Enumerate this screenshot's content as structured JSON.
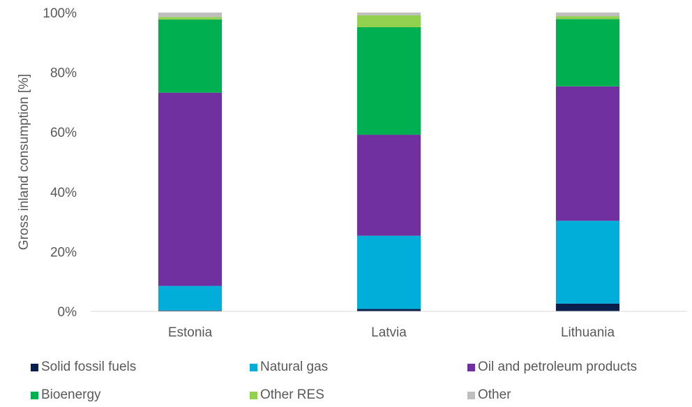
{
  "chart_data": {
    "type": "bar",
    "stacked": true,
    "categories": [
      "Estonia",
      "Latvia",
      "Lithuania"
    ],
    "ylabel": "Gross inland consumption [%]",
    "ylim": [
      0,
      100
    ],
    "yticks": [
      "0%",
      "20%",
      "40%",
      "60%",
      "80%",
      "100%"
    ],
    "grid": false,
    "legend_position": "bottom",
    "series": [
      {
        "name": "Solid fossil fuels",
        "color": "#0b1f4d",
        "values": [
          0.3,
          0.8,
          2.6
        ]
      },
      {
        "name": "Natural gas",
        "color": "#00aed9",
        "values": [
          8.2,
          24.5,
          27.7
        ]
      },
      {
        "name": "Oil and petroleum products",
        "color": "#7030a0",
        "values": [
          64.7,
          33.8,
          45.0
        ]
      },
      {
        "name": "Bioenergy",
        "color": "#00b050",
        "values": [
          24.5,
          36.0,
          22.5
        ]
      },
      {
        "name": "Other RES",
        "color": "#92d050",
        "values": [
          0.8,
          4.0,
          1.0
        ]
      },
      {
        "name": "Other",
        "color": "#bfbfbf",
        "values": [
          1.5,
          0.9,
          1.2
        ]
      }
    ]
  }
}
